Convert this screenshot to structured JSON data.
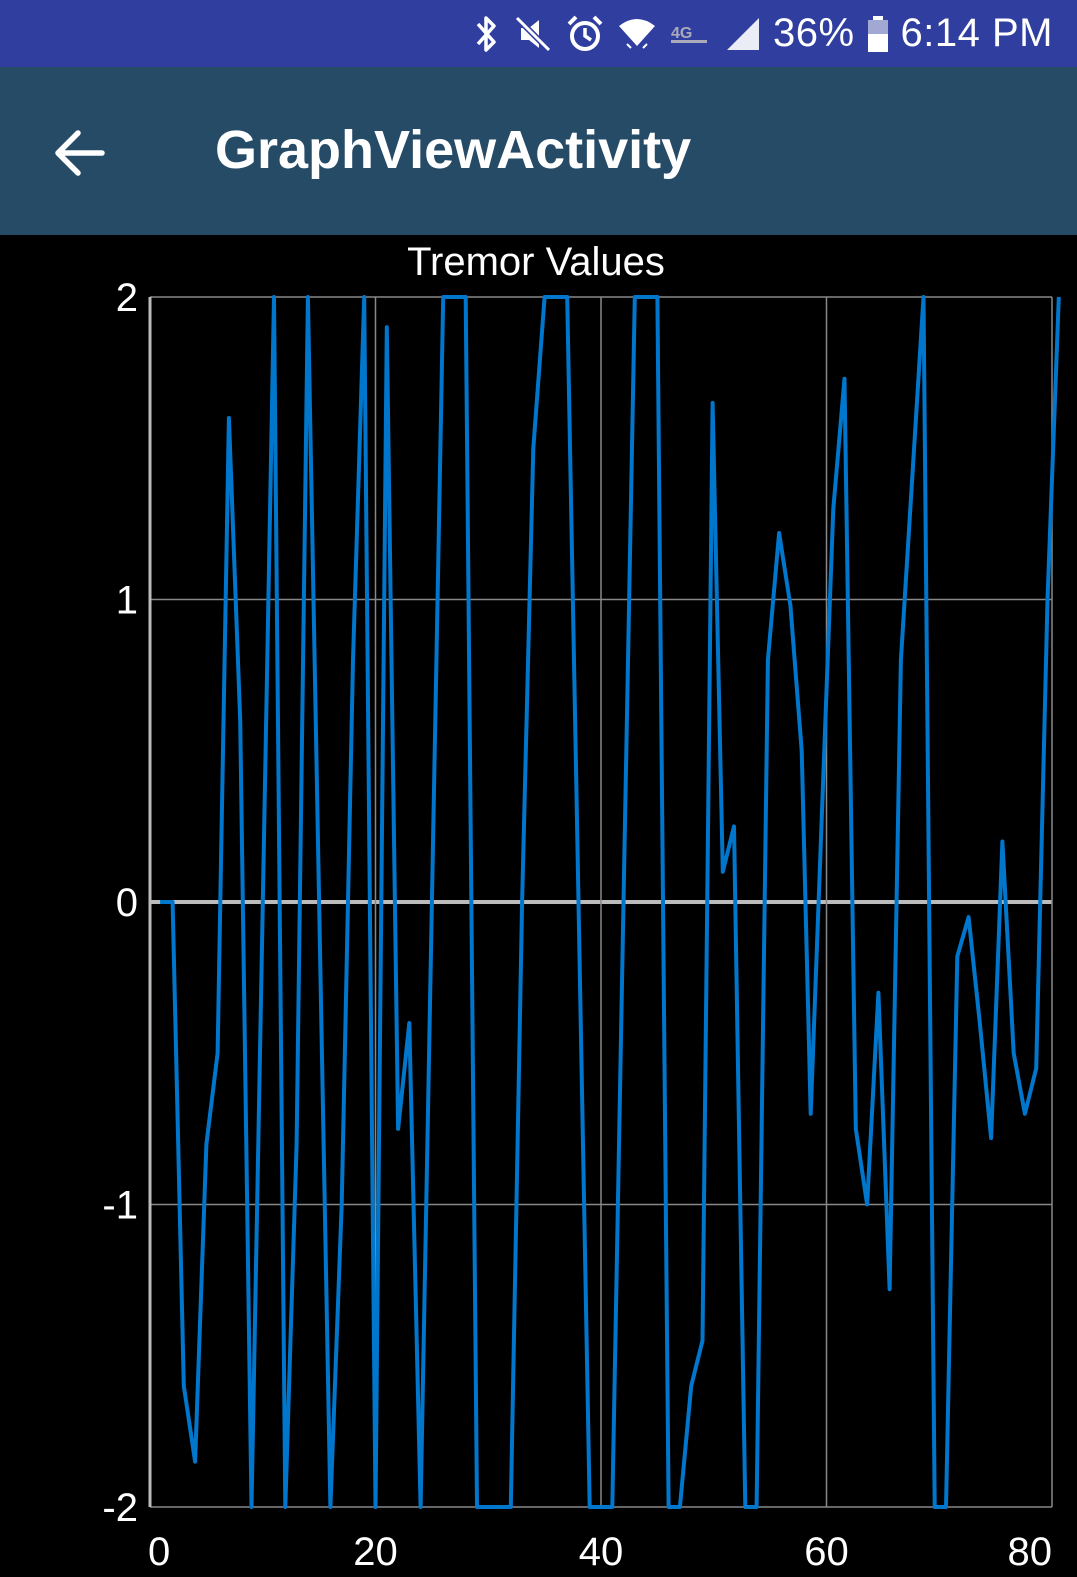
{
  "status_bar": {
    "battery": "36%",
    "time": "6:14 PM",
    "icons": [
      "bluetooth-icon",
      "mute-icon",
      "alarm-icon",
      "wifi-icon",
      "lte-icon",
      "signal-icon",
      "battery-icon"
    ]
  },
  "app_bar": {
    "title": "GraphViewActivity",
    "back_icon": "arrow-back-icon"
  },
  "colors": {
    "status_bar": "#303F9F",
    "app_bar": "#264B67",
    "background": "#000000",
    "series_line": "#0077CC",
    "grid": "#888888",
    "zero_line": "#BBBBBB"
  },
  "chart_data": {
    "type": "line",
    "title": "Tremor Values",
    "xlabel": "",
    "ylabel": "",
    "xlim": [
      0,
      80
    ],
    "ylim": [
      -2,
      2
    ],
    "x_ticks": [
      "0",
      "20",
      "40",
      "60",
      "80"
    ],
    "y_ticks": [
      "2",
      "1",
      "0",
      "-1",
      "-2"
    ],
    "grid": true,
    "series": [
      {
        "values": [
          [
            0.9,
            0
          ],
          [
            2,
            0
          ],
          [
            3,
            -1.6
          ],
          [
            4,
            -1.85
          ],
          [
            5,
            -0.8
          ],
          [
            6,
            -0.5
          ],
          [
            7,
            1.6
          ],
          [
            8,
            0.6
          ],
          [
            9,
            -2
          ],
          [
            10,
            0
          ],
          [
            11,
            2
          ],
          [
            12,
            -2
          ],
          [
            13,
            -0.8
          ],
          [
            14,
            2
          ],
          [
            15,
            0
          ],
          [
            16,
            -2
          ],
          [
            17,
            -1
          ],
          [
            18,
            0.8
          ],
          [
            19,
            2
          ],
          [
            20,
            -2
          ],
          [
            21,
            1.9
          ],
          [
            22,
            -0.75
          ],
          [
            23,
            -0.4
          ],
          [
            24,
            -2
          ],
          [
            25,
            0
          ],
          [
            26,
            2
          ],
          [
            28,
            2
          ],
          [
            29,
            -2
          ],
          [
            32,
            -2
          ],
          [
            33,
            0
          ],
          [
            34,
            1.5
          ],
          [
            35,
            2
          ],
          [
            37,
            2
          ],
          [
            38,
            0
          ],
          [
            39,
            -2
          ],
          [
            41,
            -2
          ],
          [
            42,
            0
          ],
          [
            43,
            2
          ],
          [
            45,
            2
          ],
          [
            46,
            -2
          ],
          [
            47,
            -2
          ],
          [
            48,
            -1.6
          ],
          [
            49,
            -1.45
          ],
          [
            49.9,
            1.65
          ],
          [
            50.8,
            0.1
          ],
          [
            51.8,
            0.25
          ],
          [
            52.8,
            -2
          ],
          [
            53.8,
            -2
          ],
          [
            54.8,
            0.8
          ],
          [
            55.8,
            1.22
          ],
          [
            56.8,
            0.98
          ],
          [
            57.8,
            0.5
          ],
          [
            58.6,
            -0.7
          ],
          [
            59.6,
            0.3
          ],
          [
            60.6,
            1.3
          ],
          [
            61.6,
            1.73
          ],
          [
            62.6,
            -0.75
          ],
          [
            63.6,
            -1
          ],
          [
            64.6,
            -0.3
          ],
          [
            65.6,
            -1.28
          ],
          [
            66.6,
            0.8
          ],
          [
            67.6,
            1.4
          ],
          [
            68.6,
            2
          ],
          [
            69.6,
            -2
          ],
          [
            70.6,
            -2
          ],
          [
            71.6,
            -0.18
          ],
          [
            72.6,
            -0.05
          ],
          [
            73.6,
            -0.4
          ],
          [
            74.6,
            -0.78
          ],
          [
            75.6,
            0.2
          ],
          [
            76.6,
            -0.5
          ],
          [
            77.6,
            -0.7
          ],
          [
            78.6,
            -0.55
          ],
          [
            79.6,
            1
          ],
          [
            80.6,
            2
          ]
        ]
      }
    ]
  }
}
